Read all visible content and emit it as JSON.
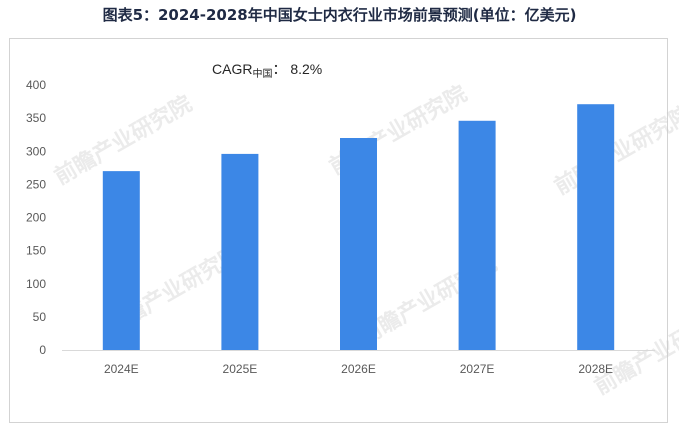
{
  "title": "图表5：2024-2028年中国女士内衣行业市场前景预测(单位：亿美元)",
  "annotation": {
    "prefix": "CAGR",
    "subscript": "中国",
    "suffix": "：  8.2%"
  },
  "watermark": "前瞻产业研究院",
  "colors": {
    "bar": "#3c87e6",
    "axis": "#d9d9d9",
    "title": "#1f2a44"
  },
  "chart_data": {
    "type": "bar",
    "categories": [
      "2024E",
      "2025E",
      "2026E",
      "2027E",
      "2028E"
    ],
    "series": [
      {
        "values": [
          270,
          296,
          320,
          346,
          371
        ]
      }
    ],
    "title": "图表5：2024-2028年中国女士内衣行业市场前景预测(单位：亿美元)",
    "xlabel": "",
    "ylabel": "",
    "ylim": [
      0,
      400
    ],
    "yticks": [
      0,
      50,
      100,
      150,
      200,
      250,
      300,
      350,
      400
    ],
    "grid": false,
    "legend": "none"
  }
}
